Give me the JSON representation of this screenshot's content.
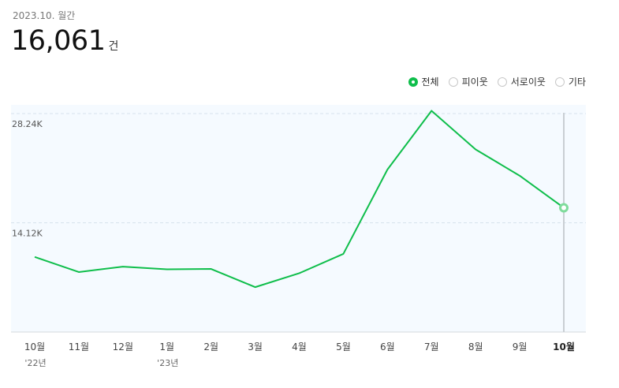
{
  "header": {
    "period": "2023.10. 월간",
    "total": "16,061",
    "unit": "건"
  },
  "legend": [
    {
      "label": "전체",
      "selected": true
    },
    {
      "label": "피이웃",
      "selected": false
    },
    {
      "label": "서로이웃",
      "selected": false
    },
    {
      "label": "기타",
      "selected": false
    }
  ],
  "colors": {
    "line": "#0fbe4b",
    "plot_bg": "#f5faff",
    "highlight_line": "#c9ced3"
  },
  "chart_data": {
    "type": "line",
    "categories": [
      "10월",
      "11월",
      "12월",
      "1월",
      "2월",
      "3월",
      "4월",
      "5월",
      "6월",
      "7월",
      "8월",
      "9월",
      "10월"
    ],
    "year_labels": [
      "'22년",
      "",
      "",
      "'23년",
      "",
      "",
      "",
      "",
      "",
      "",
      "",
      "",
      ""
    ],
    "series": [
      {
        "values": [
          9700,
          7750,
          8450,
          8100,
          8150,
          5800,
          7600,
          10100,
          21000,
          28600,
          23600,
          20200,
          16061
        ]
      }
    ],
    "ytick_labels": [
      "28.24K",
      "14.12K"
    ],
    "yticks": [
      28240,
      14120
    ],
    "ylim": [
      0,
      28240
    ],
    "highlight_index": 12,
    "grid": true
  }
}
